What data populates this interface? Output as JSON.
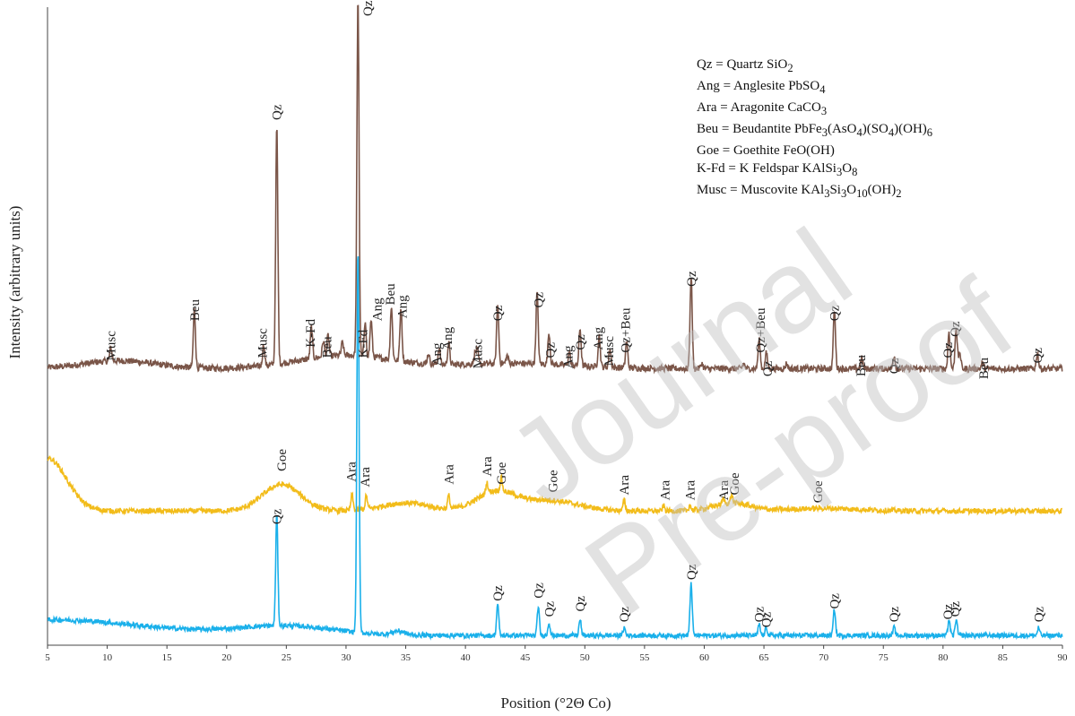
{
  "chart_data": {
    "type": "line",
    "xlabel": "Position (°2Θ Co)",
    "ylabel": "Intensity (arbitrary units)",
    "xlim": [
      5,
      90
    ],
    "x_ticks": [
      "5",
      "10",
      "15",
      "20",
      "25",
      "30",
      "35",
      "40",
      "45",
      "50",
      "55",
      "60",
      "65",
      "70",
      "75",
      "80",
      "85",
      "90"
    ],
    "grid": false,
    "series": [
      {
        "color": "#7a5548",
        "baseline": 0.08,
        "noise": 0.012,
        "humps": [
          [
            11,
            0.03,
            3
          ],
          [
            30,
            0.05,
            4
          ],
          [
            44,
            0.02,
            5
          ]
        ],
        "peaks": [
          [
            10.3,
            0.05
          ],
          [
            17.3,
            0.22
          ],
          [
            23.1,
            0.08
          ],
          [
            24.2,
            0.9
          ],
          [
            27.1,
            0.12
          ],
          [
            28.1,
            0.06
          ],
          [
            28.5,
            0.08
          ],
          [
            29.7,
            0.05
          ],
          [
            31.0,
            1.35
          ],
          [
            31.6,
            0.12
          ],
          [
            32.1,
            0.14
          ],
          [
            33.8,
            0.2
          ],
          [
            34.6,
            0.2
          ],
          [
            36.9,
            0.04
          ],
          [
            37.8,
            0.06
          ],
          [
            38.6,
            0.08
          ],
          [
            40.8,
            0.04
          ],
          [
            41.0,
            0.05
          ],
          [
            42.7,
            0.22
          ],
          [
            43.5,
            0.03
          ],
          [
            46.0,
            0.27
          ],
          [
            47.0,
            0.12
          ],
          [
            48.7,
            0.05
          ],
          [
            49.6,
            0.14
          ],
          [
            51.2,
            0.12
          ],
          [
            52.1,
            0.07
          ],
          [
            53.5,
            0.1
          ],
          [
            58.9,
            0.35
          ],
          [
            59.8,
            0.02
          ],
          [
            63.3,
            0.02
          ],
          [
            64.6,
            0.11
          ],
          [
            65.2,
            0.06
          ],
          [
            66.9,
            0.02
          ],
          [
            70.9,
            0.22
          ],
          [
            73.2,
            0.04
          ],
          [
            75.9,
            0.05
          ],
          [
            80.5,
            0.14
          ],
          [
            81.1,
            0.16
          ],
          [
            81.4,
            0.06
          ],
          [
            83.3,
            0.02
          ],
          [
            87.9,
            0.06
          ]
        ],
        "labels": [
          {
            "x": 10.3,
            "y": 0.09,
            "t": "Musc"
          },
          {
            "x": 17.3,
            "y": 0.24,
            "t": "Beu"
          },
          {
            "x": 23.0,
            "y": 0.1,
            "t": "Musc"
          },
          {
            "x": 24.2,
            "y": 1.0,
            "t": "Qz"
          },
          {
            "x": 27.0,
            "y": 0.14,
            "t": "K-Fd"
          },
          {
            "x": 28.4,
            "y": 0.1,
            "t": "Beu"
          },
          {
            "x": 31.8,
            "y": 1.45,
            "t": "Qz"
          },
          {
            "x": 31.4,
            "y": 0.1,
            "t": "K-Fd"
          },
          {
            "x": 32.6,
            "y": 0.24,
            "t": "Ang"
          },
          {
            "x": 33.7,
            "y": 0.3,
            "t": "Beu"
          },
          {
            "x": 34.7,
            "y": 0.25,
            "t": "Ang"
          },
          {
            "x": 37.6,
            "y": 0.07,
            "t": "Ang"
          },
          {
            "x": 38.5,
            "y": 0.13,
            "t": "Ang"
          },
          {
            "x": 41.0,
            "y": 0.06,
            "t": "Musc"
          },
          {
            "x": 42.7,
            "y": 0.24,
            "t": "Qz"
          },
          {
            "x": 46.1,
            "y": 0.29,
            "t": "Qz"
          },
          {
            "x": 47.1,
            "y": 0.1,
            "t": "Qz"
          },
          {
            "x": 48.6,
            "y": 0.06,
            "t": "Ang"
          },
          {
            "x": 49.6,
            "y": 0.13,
            "t": "Qz"
          },
          {
            "x": 51.1,
            "y": 0.13,
            "t": "Ang"
          },
          {
            "x": 52.0,
            "y": 0.07,
            "t": "Musc"
          },
          {
            "x": 53.4,
            "y": 0.12,
            "t": "Qz+Beu"
          },
          {
            "x": 58.9,
            "y": 0.37,
            "t": "Qz"
          },
          {
            "x": 64.7,
            "y": 0.12,
            "t": "Qz+Beu"
          },
          {
            "x": 65.3,
            "y": 0.03,
            "t": "Qz"
          },
          {
            "x": 70.9,
            "y": 0.24,
            "t": "Qz"
          },
          {
            "x": 73.1,
            "y": 0.03,
            "t": "Beu"
          },
          {
            "x": 75.9,
            "y": 0.04,
            "t": "Qz"
          },
          {
            "x": 80.4,
            "y": 0.1,
            "t": "Qz"
          },
          {
            "x": 81.0,
            "y": 0.18,
            "t": "Qz"
          },
          {
            "x": 83.4,
            "y": 0.02,
            "t": "Beu"
          },
          {
            "x": 87.9,
            "y": 0.08,
            "t": "Qz"
          }
        ]
      },
      {
        "color": "#f2bc1a",
        "baseline": 0.05,
        "noise": 0.01,
        "humps": [
          [
            5,
            0.2,
            1.6
          ],
          [
            24.6,
            0.1,
            1.6
          ],
          [
            35,
            0.03,
            2
          ],
          [
            42.5,
            0.07,
            1.6
          ],
          [
            47,
            0.04,
            2.4
          ],
          [
            62.3,
            0.03,
            1.5
          ],
          [
            70,
            0.01,
            3
          ]
        ],
        "peaks": [
          [
            30.5,
            0.06
          ],
          [
            31.7,
            0.05
          ],
          [
            38.6,
            0.05
          ],
          [
            41.8,
            0.04
          ],
          [
            43.0,
            0.05
          ],
          [
            53.3,
            0.04
          ],
          [
            56.6,
            0.02
          ],
          [
            58.8,
            0.02
          ],
          [
            61.6,
            0.02
          ],
          [
            62.3,
            0.03
          ]
        ],
        "labels": [
          {
            "x": 24.6,
            "y": 0.18,
            "t": "Goe"
          },
          {
            "x": 30.4,
            "y": 0.14,
            "t": "Ara"
          },
          {
            "x": 31.6,
            "y": 0.12,
            "t": "Ara"
          },
          {
            "x": 38.6,
            "y": 0.13,
            "t": "Ara"
          },
          {
            "x": 41.8,
            "y": 0.16,
            "t": "Ara"
          },
          {
            "x": 43.0,
            "y": 0.13,
            "t": "Goe"
          },
          {
            "x": 47.3,
            "y": 0.1,
            "t": "Goe"
          },
          {
            "x": 53.3,
            "y": 0.09,
            "t": "Ara"
          },
          {
            "x": 56.7,
            "y": 0.07,
            "t": "Ara"
          },
          {
            "x": 58.8,
            "y": 0.07,
            "t": "Ara"
          },
          {
            "x": 61.6,
            "y": 0.07,
            "t": "Ara"
          },
          {
            "x": 62.5,
            "y": 0.09,
            "t": "Goe"
          },
          {
            "x": 69.5,
            "y": 0.06,
            "t": "Goe"
          }
        ]
      },
      {
        "color": "#1ab0ea",
        "baseline": 0.03,
        "noise": 0.009,
        "humps": [
          [
            5,
            0.06,
            8
          ],
          [
            25,
            0.035,
            4
          ],
          [
            34.4,
            0.015,
            0.5
          ]
        ],
        "peaks": [
          [
            24.2,
            0.42
          ],
          [
            31.0,
            1.45
          ],
          [
            42.7,
            0.12
          ],
          [
            46.1,
            0.11
          ],
          [
            47.0,
            0.05
          ],
          [
            49.6,
            0.06
          ],
          [
            53.3,
            0.03
          ],
          [
            58.9,
            0.2
          ],
          [
            64.6,
            0.04
          ],
          [
            65.2,
            0.03
          ],
          [
            70.9,
            0.1
          ],
          [
            75.9,
            0.03
          ],
          [
            80.5,
            0.06
          ],
          [
            81.1,
            0.06
          ],
          [
            88.0,
            0.03
          ]
        ],
        "labels": [
          {
            "x": 24.2,
            "y": 0.43,
            "t": "Qz"
          },
          {
            "x": 42.7,
            "y": 0.14,
            "t": "Qz"
          },
          {
            "x": 46.1,
            "y": 0.15,
            "t": "Qz"
          },
          {
            "x": 47.0,
            "y": 0.08,
            "t": "Qz"
          },
          {
            "x": 49.6,
            "y": 0.1,
            "t": "Qz"
          },
          {
            "x": 53.3,
            "y": 0.06,
            "t": "Qz"
          },
          {
            "x": 58.9,
            "y": 0.22,
            "t": "Qz"
          },
          {
            "x": 64.6,
            "y": 0.06,
            "t": "Qz"
          },
          {
            "x": 65.2,
            "y": 0.04,
            "t": "Qz"
          },
          {
            "x": 70.9,
            "y": 0.11,
            "t": "Qz"
          },
          {
            "x": 75.9,
            "y": 0.06,
            "t": "Qz"
          },
          {
            "x": 80.4,
            "y": 0.07,
            "t": "Qz"
          },
          {
            "x": 81.0,
            "y": 0.08,
            "t": "Qz"
          },
          {
            "x": 88.0,
            "y": 0.06,
            "t": "Qz"
          }
        ]
      }
    ]
  },
  "legend": [
    {
      "pre": "Qz = Quartz SiO",
      "parts": [
        [
          "2",
          "sub"
        ]
      ]
    },
    {
      "pre": "Ang = Anglesite PbSO",
      "parts": [
        [
          "4",
          "sub"
        ]
      ]
    },
    {
      "pre": "Ara = Aragonite CaCO",
      "parts": [
        [
          "3",
          "sub"
        ]
      ]
    },
    {
      "pre": "Beu = Beudantite PbFe",
      "parts": [
        [
          "3",
          "sub"
        ],
        [
          "(AsO",
          ""
        ],
        [
          "4",
          "sub"
        ],
        [
          ")(SO",
          ""
        ],
        [
          "4",
          "sub"
        ],
        [
          ")(OH)",
          ""
        ],
        [
          "6",
          "sub"
        ]
      ]
    },
    {
      "pre": "Goe = Goethite FeO(OH)",
      "parts": []
    },
    {
      "pre": "K-Fd = K Feldspar KAlSi",
      "parts": [
        [
          "3",
          "sub"
        ],
        [
          "O",
          ""
        ],
        [
          "8",
          "sub"
        ]
      ]
    },
    {
      "pre": "Musc = Muscovite KAl",
      "parts": [
        [
          "3",
          "sub"
        ],
        [
          "Si",
          ""
        ],
        [
          "3",
          "sub"
        ],
        [
          "O",
          ""
        ],
        [
          "10",
          "sub"
        ],
        [
          "(OH)",
          ""
        ],
        [
          "2",
          "sub"
        ]
      ]
    }
  ],
  "watermark": "Journal Pre-proof"
}
